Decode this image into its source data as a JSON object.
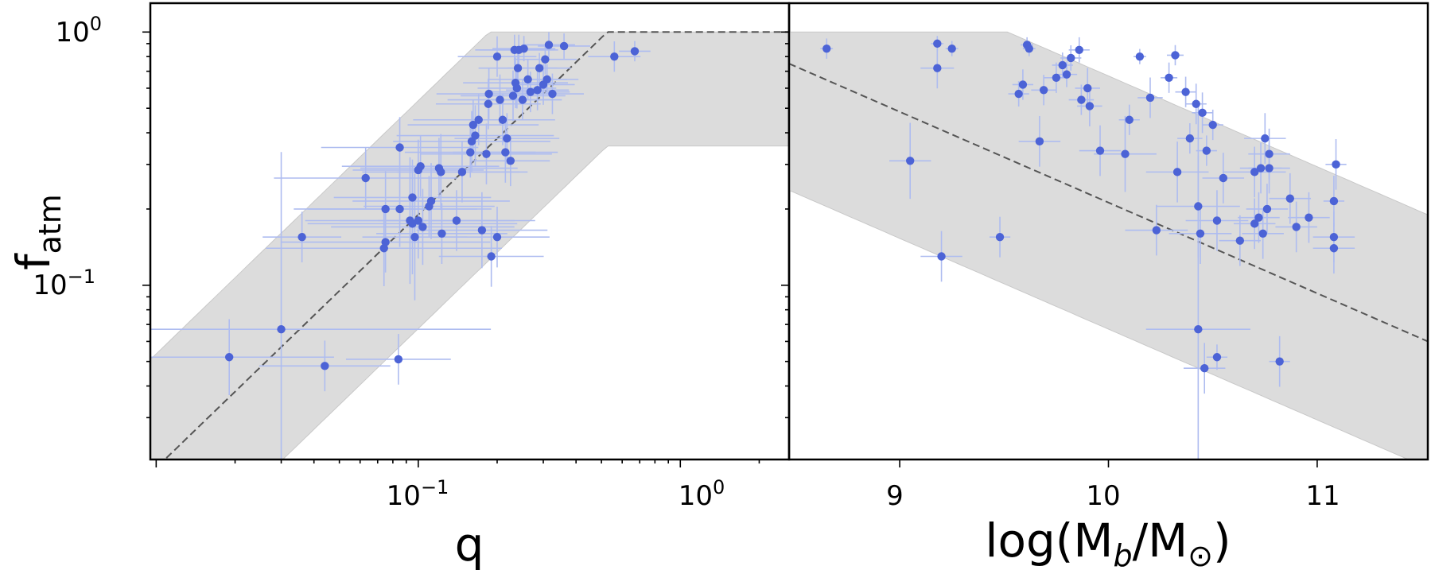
{
  "colors": {
    "points": "#4c63d6",
    "errorbars": "#aebcf0",
    "band": "#dcdcdc",
    "band_edge": "#c8c8c8",
    "dashed": "#555555"
  },
  "chart_data": [
    {
      "type": "scatter",
      "panel": "left",
      "xlabel": "q",
      "ylabel_main": "f",
      "ylabel_sub": "atm",
      "xscale": "log",
      "yscale": "log",
      "xlim": [
        0.0095,
        2.6
      ],
      "ylim": [
        0.0205,
        1.3
      ],
      "xtick_labels": [
        {
          "base": "10",
          "exp": "−1",
          "value": 0.1
        },
        {
          "base": "10",
          "exp": "0",
          "value": 1.0
        }
      ],
      "ytick_labels": [
        {
          "base": "10",
          "exp": "0",
          "value": 1.0
        },
        {
          "base": "10",
          "exp": "−1",
          "value": 0.1
        }
      ],
      "relation": {
        "slope": 1.0,
        "amplitude": 1.9,
        "cap": 1.0,
        "band_dex": 0.45
      },
      "points": [
        {
          "x": 0.019,
          "y": 0.052,
          "xerr": 0.4,
          "yerr": 0.15
        },
        {
          "x": 0.03,
          "y": 0.067,
          "xerr": 0.8,
          "yerr": 0.7
        },
        {
          "x": 0.044,
          "y": 0.048,
          "xerr": 0.25,
          "yerr": 0.1
        },
        {
          "x": 0.036,
          "y": 0.155,
          "xerr": 0.15,
          "yerr": 0.1
        },
        {
          "x": 0.084,
          "y": 0.051,
          "xerr": 0.2,
          "yerr": 0.1
        },
        {
          "x": 0.063,
          "y": 0.265,
          "xerr": 0.35,
          "yerr": 0.12
        },
        {
          "x": 0.074,
          "y": 0.14,
          "xerr": 0.45,
          "yerr": 0.15
        },
        {
          "x": 0.075,
          "y": 0.148,
          "xerr": 0.4,
          "yerr": 0.12
        },
        {
          "x": 0.075,
          "y": 0.2,
          "xerr": 0.35,
          "yerr": 0.15
        },
        {
          "x": 0.085,
          "y": 0.35,
          "xerr": 0.3,
          "yerr": 0.12
        },
        {
          "x": 0.085,
          "y": 0.2,
          "xerr": 0.35,
          "yerr": 0.15
        },
        {
          "x": 0.093,
          "y": 0.18,
          "xerr": 0.4,
          "yerr": 0.25
        },
        {
          "x": 0.095,
          "y": 0.175,
          "xerr": 0.4,
          "yerr": 0.2
        },
        {
          "x": 0.095,
          "y": 0.222,
          "xerr": 0.3,
          "yerr": 0.15
        },
        {
          "x": 0.097,
          "y": 0.155,
          "xerr": 0.2,
          "yerr": 0.25
        },
        {
          "x": 0.1,
          "y": 0.18,
          "xerr": 0.3,
          "yerr": 0.15
        },
        {
          "x": 0.1,
          "y": 0.285,
          "xerr": 0.25,
          "yerr": 0.12
        },
        {
          "x": 0.102,
          "y": 0.295,
          "xerr": 0.3,
          "yerr": 0.12
        },
        {
          "x": 0.104,
          "y": 0.17,
          "xerr": 0.35,
          "yerr": 0.15
        },
        {
          "x": 0.11,
          "y": 0.205,
          "xerr": 0.25,
          "yerr": 0.12
        },
        {
          "x": 0.112,
          "y": 0.215,
          "xerr": 0.3,
          "yerr": 0.15
        },
        {
          "x": 0.12,
          "y": 0.29,
          "xerr": 0.3,
          "yerr": 0.12
        },
        {
          "x": 0.122,
          "y": 0.28,
          "xerr": 0.3,
          "yerr": 0.15
        },
        {
          "x": 0.123,
          "y": 0.16,
          "xerr": 0.25,
          "yerr": 0.12
        },
        {
          "x": 0.14,
          "y": 0.18,
          "xerr": 0.3,
          "yerr": 0.12
        },
        {
          "x": 0.147,
          "y": 0.28,
          "xerr": 0.25,
          "yerr": 0.12
        },
        {
          "x": 0.158,
          "y": 0.335,
          "xerr": 0.25,
          "yerr": 0.1
        },
        {
          "x": 0.16,
          "y": 0.37,
          "xerr": 0.3,
          "yerr": 0.12
        },
        {
          "x": 0.162,
          "y": 0.43,
          "xerr": 0.25,
          "yerr": 0.1
        },
        {
          "x": 0.165,
          "y": 0.39,
          "xerr": 0.3,
          "yerr": 0.12
        },
        {
          "x": 0.17,
          "y": 0.45,
          "xerr": 0.25,
          "yerr": 0.1
        },
        {
          "x": 0.175,
          "y": 0.165,
          "xerr": 0.25,
          "yerr": 0.15
        },
        {
          "x": 0.182,
          "y": 0.33,
          "xerr": 0.25,
          "yerr": 0.12
        },
        {
          "x": 0.185,
          "y": 0.52,
          "xerr": 0.2,
          "yerr": 0.1
        },
        {
          "x": 0.186,
          "y": 0.57,
          "xerr": 0.2,
          "yerr": 0.1
        },
        {
          "x": 0.19,
          "y": 0.13,
          "xerr": 0.2,
          "yerr": 0.12
        },
        {
          "x": 0.2,
          "y": 0.155,
          "xerr": 0.2,
          "yerr": 0.12
        },
        {
          "x": 0.2,
          "y": 0.8,
          "xerr": 0.15,
          "yerr": 0.08
        },
        {
          "x": 0.205,
          "y": 0.54,
          "xerr": 0.2,
          "yerr": 0.1
        },
        {
          "x": 0.21,
          "y": 0.45,
          "xerr": 0.2,
          "yerr": 0.1
        },
        {
          "x": 0.215,
          "y": 0.335,
          "xerr": 0.2,
          "yerr": 0.12
        },
        {
          "x": 0.218,
          "y": 0.38,
          "xerr": 0.2,
          "yerr": 0.1
        },
        {
          "x": 0.225,
          "y": 0.31,
          "xerr": 0.15,
          "yerr": 0.1
        },
        {
          "x": 0.23,
          "y": 0.56,
          "xerr": 0.2,
          "yerr": 0.1
        },
        {
          "x": 0.233,
          "y": 0.85,
          "xerr": 0.15,
          "yerr": 0.06
        },
        {
          "x": 0.235,
          "y": 0.63,
          "xerr": 0.2,
          "yerr": 0.1
        },
        {
          "x": 0.238,
          "y": 0.6,
          "xerr": 0.15,
          "yerr": 0.08
        },
        {
          "x": 0.24,
          "y": 0.72,
          "xerr": 0.15,
          "yerr": 0.08
        },
        {
          "x": 0.242,
          "y": 0.85,
          "xerr": 0.15,
          "yerr": 0.06
        },
        {
          "x": 0.25,
          "y": 0.54,
          "xerr": 0.15,
          "yerr": 0.08
        },
        {
          "x": 0.253,
          "y": 0.86,
          "xerr": 0.12,
          "yerr": 0.05
        },
        {
          "x": 0.262,
          "y": 0.65,
          "xerr": 0.15,
          "yerr": 0.08
        },
        {
          "x": 0.268,
          "y": 0.58,
          "xerr": 0.15,
          "yerr": 0.08
        },
        {
          "x": 0.285,
          "y": 0.59,
          "xerr": 0.12,
          "yerr": 0.08
        },
        {
          "x": 0.29,
          "y": 0.72,
          "xerr": 0.12,
          "yerr": 0.06
        },
        {
          "x": 0.3,
          "y": 0.62,
          "xerr": 0.12,
          "yerr": 0.08
        },
        {
          "x": 0.305,
          "y": 0.78,
          "xerr": 0.12,
          "yerr": 0.06
        },
        {
          "x": 0.31,
          "y": 0.65,
          "xerr": 0.12,
          "yerr": 0.06
        },
        {
          "x": 0.315,
          "y": 0.89,
          "xerr": 0.1,
          "yerr": 0.05
        },
        {
          "x": 0.325,
          "y": 0.57,
          "xerr": 0.12,
          "yerr": 0.08
        },
        {
          "x": 0.36,
          "y": 0.88,
          "xerr": 0.1,
          "yerr": 0.05
        },
        {
          "x": 0.56,
          "y": 0.8,
          "xerr": 0.1,
          "yerr": 0.06
        },
        {
          "x": 0.67,
          "y": 0.84,
          "xerr": 0.06,
          "yerr": 0.04
        }
      ]
    },
    {
      "type": "scatter",
      "panel": "right",
      "xlabel_main": "log(M",
      "xlabel_sub": "b",
      "xlabel_mid": "/M",
      "xlabel_sub2": "⊙",
      "xlabel_end": ")",
      "xscale": "linear",
      "yscale": "log",
      "xlim": [
        8.47,
        11.53
      ],
      "ylim": [
        0.0205,
        1.3
      ],
      "xtick_labels": [
        "9",
        "10",
        "11"
      ],
      "xtick_values": [
        9,
        10,
        11
      ],
      "relation": {
        "y_at_xmin": 0.75,
        "y_at_xmax": 0.06,
        "band_dex": 0.5,
        "cap": 1.0
      },
      "points": [
        {
          "x": 8.65,
          "y": 0.86,
          "xerr": 0.03,
          "yerr": 0.04
        },
        {
          "x": 9.05,
          "y": 0.31,
          "xerr": 0.1,
          "yerr": 0.15
        },
        {
          "x": 9.18,
          "y": 0.72,
          "xerr": 0.08,
          "yerr": 0.08
        },
        {
          "x": 9.18,
          "y": 0.9,
          "xerr": 0.03,
          "yerr": 0.03
        },
        {
          "x": 9.2,
          "y": 0.13,
          "xerr": 0.1,
          "yerr": 0.1
        },
        {
          "x": 9.25,
          "y": 0.86,
          "xerr": 0.03,
          "yerr": 0.03
        },
        {
          "x": 9.48,
          "y": 0.155,
          "xerr": 0.05,
          "yerr": 0.08
        },
        {
          "x": 9.57,
          "y": 0.57,
          "xerr": 0.05,
          "yerr": 0.05
        },
        {
          "x": 9.59,
          "y": 0.62,
          "xerr": 0.05,
          "yerr": 0.06
        },
        {
          "x": 9.61,
          "y": 0.89,
          "xerr": 0.03,
          "yerr": 0.03
        },
        {
          "x": 9.62,
          "y": 0.86,
          "xerr": 0.03,
          "yerr": 0.03
        },
        {
          "x": 9.67,
          "y": 0.37,
          "xerr": 0.1,
          "yerr": 0.1
        },
        {
          "x": 9.69,
          "y": 0.59,
          "xerr": 0.06,
          "yerr": 0.06
        },
        {
          "x": 9.75,
          "y": 0.66,
          "xerr": 0.06,
          "yerr": 0.06
        },
        {
          "x": 9.78,
          "y": 0.74,
          "xerr": 0.05,
          "yerr": 0.05
        },
        {
          "x": 9.8,
          "y": 0.68,
          "xerr": 0.05,
          "yerr": 0.05
        },
        {
          "x": 9.82,
          "y": 0.79,
          "xerr": 0.05,
          "yerr": 0.05
        },
        {
          "x": 9.86,
          "y": 0.85,
          "xerr": 0.05,
          "yerr": 0.05
        },
        {
          "x": 9.87,
          "y": 0.54,
          "xerr": 0.06,
          "yerr": 0.06
        },
        {
          "x": 9.9,
          "y": 0.6,
          "xerr": 0.06,
          "yerr": 0.08
        },
        {
          "x": 9.91,
          "y": 0.51,
          "xerr": 0.06,
          "yerr": 0.08
        },
        {
          "x": 9.96,
          "y": 0.34,
          "xerr": 0.1,
          "yerr": 0.1
        },
        {
          "x": 10.08,
          "y": 0.33,
          "xerr": 0.15,
          "yerr": 0.15
        },
        {
          "x": 10.1,
          "y": 0.45,
          "xerr": 0.05,
          "yerr": 0.06
        },
        {
          "x": 10.15,
          "y": 0.8,
          "xerr": 0.03,
          "yerr": 0.03
        },
        {
          "x": 10.2,
          "y": 0.55,
          "xerr": 0.06,
          "yerr": 0.08
        },
        {
          "x": 10.23,
          "y": 0.165,
          "xerr": 0.15,
          "yerr": 0.1
        },
        {
          "x": 10.29,
          "y": 0.66,
          "xerr": 0.04,
          "yerr": 0.06
        },
        {
          "x": 10.32,
          "y": 0.81,
          "xerr": 0.04,
          "yerr": 0.04
        },
        {
          "x": 10.33,
          "y": 0.28,
          "xerr": 0.15,
          "yerr": 0.12
        },
        {
          "x": 10.37,
          "y": 0.58,
          "xerr": 0.05,
          "yerr": 0.06
        },
        {
          "x": 10.39,
          "y": 0.38,
          "xerr": 0.06,
          "yerr": 0.06
        },
        {
          "x": 10.42,
          "y": 0.52,
          "xerr": 0.05,
          "yerr": 0.08
        },
        {
          "x": 10.43,
          "y": 0.067,
          "xerr": 0.25,
          "yerr": 0.9
        },
        {
          "x": 10.43,
          "y": 0.205,
          "xerr": 0.2,
          "yerr": 0.2
        },
        {
          "x": 10.44,
          "y": 0.16,
          "xerr": 0.15,
          "yerr": 0.12
        },
        {
          "x": 10.45,
          "y": 0.48,
          "xerr": 0.05,
          "yerr": 0.08
        },
        {
          "x": 10.46,
          "y": 0.047,
          "xerr": 0.1,
          "yerr": 0.1
        },
        {
          "x": 10.47,
          "y": 0.34,
          "xerr": 0.05,
          "yerr": 0.06
        },
        {
          "x": 10.5,
          "y": 0.43,
          "xerr": 0.05,
          "yerr": 0.06
        },
        {
          "x": 10.52,
          "y": 0.18,
          "xerr": 0.15,
          "yerr": 0.12
        },
        {
          "x": 10.52,
          "y": 0.052,
          "xerr": 0.05,
          "yerr": 0.05
        },
        {
          "x": 10.55,
          "y": 0.265,
          "xerr": 0.1,
          "yerr": 0.1
        },
        {
          "x": 10.63,
          "y": 0.15,
          "xerr": 0.1,
          "yerr": 0.1
        },
        {
          "x": 10.7,
          "y": 0.175,
          "xerr": 0.1,
          "yerr": 0.1
        },
        {
          "x": 10.7,
          "y": 0.28,
          "xerr": 0.15,
          "yerr": 0.1
        },
        {
          "x": 10.72,
          "y": 0.185,
          "xerr": 0.1,
          "yerr": 0.1
        },
        {
          "x": 10.73,
          "y": 0.29,
          "xerr": 0.1,
          "yerr": 0.1
        },
        {
          "x": 10.74,
          "y": 0.16,
          "xerr": 0.1,
          "yerr": 0.1
        },
        {
          "x": 10.75,
          "y": 0.38,
          "xerr": 0.1,
          "yerr": 0.1
        },
        {
          "x": 10.76,
          "y": 0.2,
          "xerr": 0.1,
          "yerr": 0.1
        },
        {
          "x": 10.77,
          "y": 0.33,
          "xerr": 0.1,
          "yerr": 0.1
        },
        {
          "x": 10.77,
          "y": 0.29,
          "xerr": 0.1,
          "yerr": 0.1
        },
        {
          "x": 10.82,
          "y": 0.05,
          "xerr": 0.05,
          "yerr": 0.1
        },
        {
          "x": 10.87,
          "y": 0.22,
          "xerr": 0.1,
          "yerr": 0.1
        },
        {
          "x": 10.9,
          "y": 0.17,
          "xerr": 0.1,
          "yerr": 0.1
        },
        {
          "x": 10.96,
          "y": 0.185,
          "xerr": 0.1,
          "yerr": 0.1
        },
        {
          "x": 11.09,
          "y": 0.3,
          "xerr": 0.05,
          "yerr": 0.1
        },
        {
          "x": 11.08,
          "y": 0.215,
          "xerr": 0.05,
          "yerr": 0.1
        },
        {
          "x": 11.08,
          "y": 0.155,
          "xerr": 0.1,
          "yerr": 0.1
        },
        {
          "x": 11.08,
          "y": 0.14,
          "xerr": 0.1,
          "yerr": 0.1
        }
      ]
    }
  ]
}
